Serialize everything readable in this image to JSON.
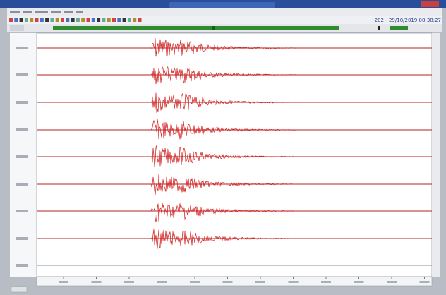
{
  "header": {
    "timestamp": "202 - 29/10/2019 08:38:27"
  }
}
